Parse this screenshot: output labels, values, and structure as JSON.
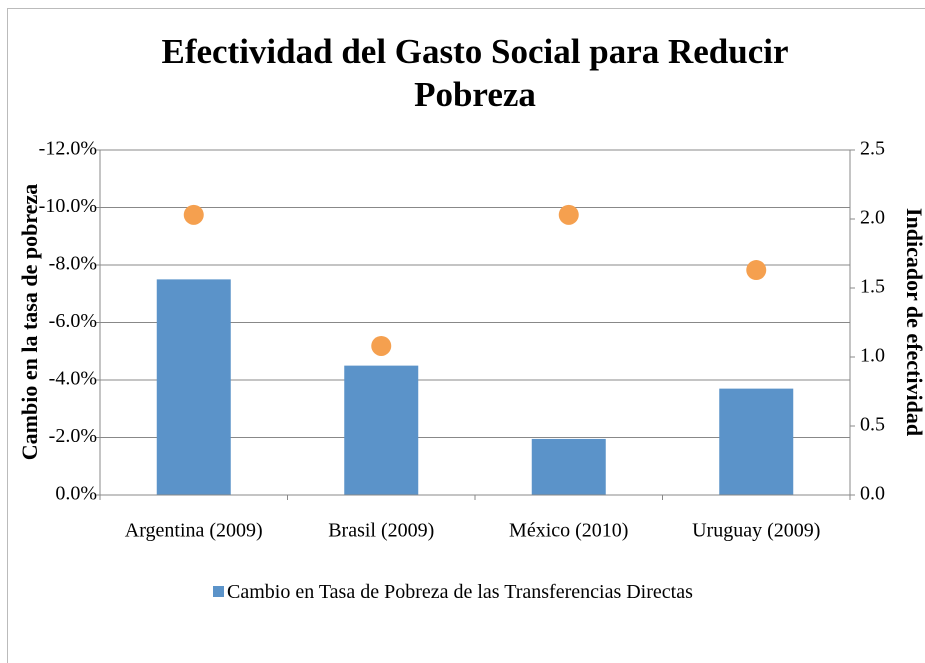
{
  "chart_data": {
    "type": "bar",
    "title": "Efectividad del Gasto Social para Reducir Pobreza",
    "y_label": "Cambio en la tasa de pobreza",
    "y2_label": "Indicador de efectividad",
    "categories": [
      "Argentina (2009)",
      "Brasil (2009)",
      "México (2010)",
      "Uruguay (2009)"
    ],
    "series": [
      {
        "name": "Cambio en Tasa de Pobreza de las Transferencias Directas",
        "color": "#5b93c9",
        "values": [
          -7.5,
          -4.5,
          -1.95,
          -3.7
        ]
      },
      {
        "type": "scatter",
        "axis": "y2",
        "color": "#f5a04f",
        "values": [
          2.03,
          1.08,
          2.03,
          1.63
        ]
      }
    ],
    "ylim": [
      0,
      -12
    ],
    "yticks": [
      {
        "value": 0,
        "label": "0.0%"
      },
      {
        "value": -2,
        "label": "-2.0%"
      },
      {
        "value": -4,
        "label": "-4.0%"
      },
      {
        "value": -6,
        "label": "-6.0%"
      },
      {
        "value": -8,
        "label": "-8.0%"
      },
      {
        "value": -10,
        "label": "-10.0%"
      },
      {
        "value": -12,
        "label": "-12.0%"
      }
    ],
    "y2lim": [
      0,
      2.5
    ],
    "y2ticks": [
      {
        "value": 0,
        "label": "0.0"
      },
      {
        "value": 0.5,
        "label": "0.5"
      },
      {
        "value": 1,
        "label": "1.0"
      },
      {
        "value": 1.5,
        "label": "1.5"
      },
      {
        "value": 2,
        "label": "2.0"
      },
      {
        "value": 2.5,
        "label": "2.5"
      }
    ],
    "grid": true,
    "legend": "bottom"
  }
}
